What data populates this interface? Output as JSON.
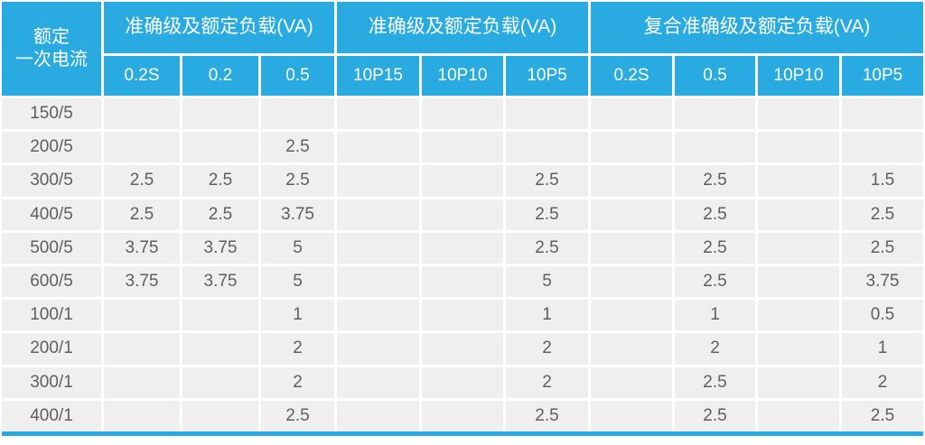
{
  "table": {
    "corner": {
      "line1": "额定",
      "line2": "一次电流"
    },
    "groups": [
      {
        "label": "准确级及额定负载(VA)",
        "columns": [
          "0.2S",
          "0.2",
          "0.5"
        ]
      },
      {
        "label": "准确级及额定负载(VA)",
        "columns": [
          "10P15",
          "10P10",
          "10P5"
        ]
      },
      {
        "label": "复合准确级及额定负载(VA)",
        "columns": [
          "0.2S",
          "0.5",
          "10P10",
          "10P5"
        ]
      }
    ],
    "rows": [
      {
        "label": "150/5",
        "values": [
          "",
          "",
          "",
          "",
          "",
          "",
          "",
          "",
          "",
          ""
        ]
      },
      {
        "label": "200/5",
        "values": [
          "",
          "",
          "2.5",
          "",
          "",
          "",
          "",
          "",
          "",
          ""
        ]
      },
      {
        "label": "300/5",
        "values": [
          "2.5",
          "2.5",
          "2.5",
          "",
          "",
          "2.5",
          "",
          "2.5",
          "",
          "1.5"
        ]
      },
      {
        "label": "400/5",
        "values": [
          "2.5",
          "2.5",
          "3.75",
          "",
          "",
          "2.5",
          "",
          "2.5",
          "",
          "2.5"
        ]
      },
      {
        "label": "500/5",
        "values": [
          "3.75",
          "3.75",
          "5",
          "",
          "",
          "2.5",
          "",
          "2.5",
          "",
          "2.5"
        ]
      },
      {
        "label": "600/5",
        "values": [
          "3.75",
          "3.75",
          "5",
          "",
          "",
          "5",
          "",
          "2.5",
          "",
          "3.75"
        ]
      },
      {
        "label": "100/1",
        "values": [
          "",
          "",
          "1",
          "",
          "",
          "1",
          "",
          "1",
          "",
          "0.5"
        ]
      },
      {
        "label": "200/1",
        "values": [
          "",
          "",
          "2",
          "",
          "",
          "2",
          "",
          "2",
          "",
          "1"
        ]
      },
      {
        "label": "300/1",
        "values": [
          "",
          "",
          "2",
          "",
          "",
          "2",
          "",
          "2.5",
          "",
          "2"
        ]
      },
      {
        "label": "400/1",
        "values": [
          "",
          "",
          "2.5",
          "",
          "",
          "2.5",
          "",
          "2.5",
          "",
          "2.5"
        ]
      }
    ],
    "colors": {
      "header_bg": "#29ABE2",
      "row_bg": "#EFEFEF",
      "grid": "#FFFFFF",
      "header_text": "#FFFFFF",
      "cell_text": "#5E5E5E"
    }
  }
}
